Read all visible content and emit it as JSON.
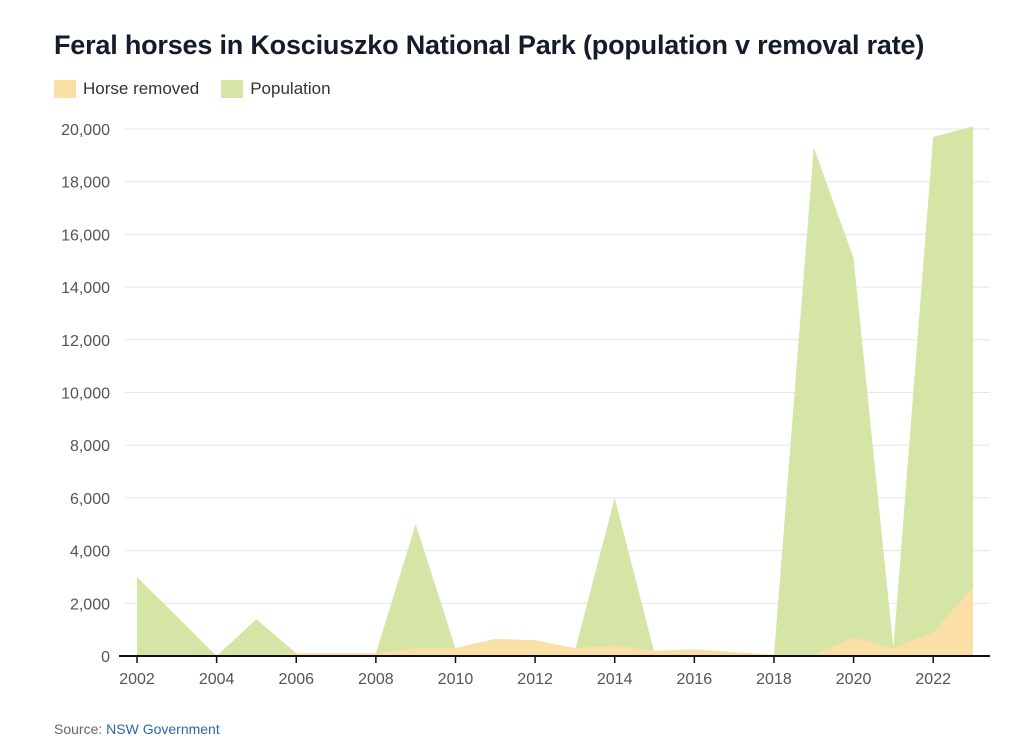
{
  "chart_data": {
    "type": "area",
    "title": "Feral horses in Kosciuszko National Park (population v removal rate)",
    "x": [
      2002,
      2003,
      2004,
      2005,
      2006,
      2007,
      2008,
      2009,
      2010,
      2011,
      2012,
      2013,
      2014,
      2015,
      2016,
      2017,
      2018,
      2019,
      2020,
      2021,
      2022,
      2023
    ],
    "series": [
      {
        "name": "Population",
        "color": "#d5e5a6",
        "values": [
          3000,
          1500,
          0,
          1400,
          100,
          100,
          100,
          5000,
          300,
          400,
          400,
          200,
          6000,
          100,
          100,
          0,
          0,
          19300,
          15100,
          300,
          19700,
          20100
        ]
      },
      {
        "name": "Horse removed",
        "color": "#fae0a6",
        "values": [
          0,
          0,
          0,
          0,
          100,
          100,
          100,
          300,
          300,
          650,
          600,
          300,
          400,
          200,
          250,
          150,
          50,
          50,
          700,
          300,
          900,
          2600
        ]
      }
    ],
    "legend": [
      "Horse removed",
      "Population"
    ],
    "legend_colors": [
      "#fae0a6",
      "#d5e5a6"
    ],
    "xticks": [
      2002,
      2004,
      2006,
      2008,
      2010,
      2012,
      2014,
      2016,
      2018,
      2020,
      2022
    ],
    "yticks": [
      0,
      2000,
      4000,
      6000,
      8000,
      10000,
      12000,
      14000,
      16000,
      18000,
      20000
    ],
    "ytick_labels": [
      "0",
      "2,000",
      "4,000",
      "6,000",
      "8,000",
      "10,000",
      "12,000",
      "14,000",
      "16,000",
      "18,000",
      "20,000"
    ],
    "xlim": [
      2002,
      2023
    ],
    "ylim": [
      0,
      20000
    ],
    "grid": true,
    "legend_position": "top-left"
  },
  "source": {
    "prefix": "Source: ",
    "link_text": "NSW Government"
  }
}
